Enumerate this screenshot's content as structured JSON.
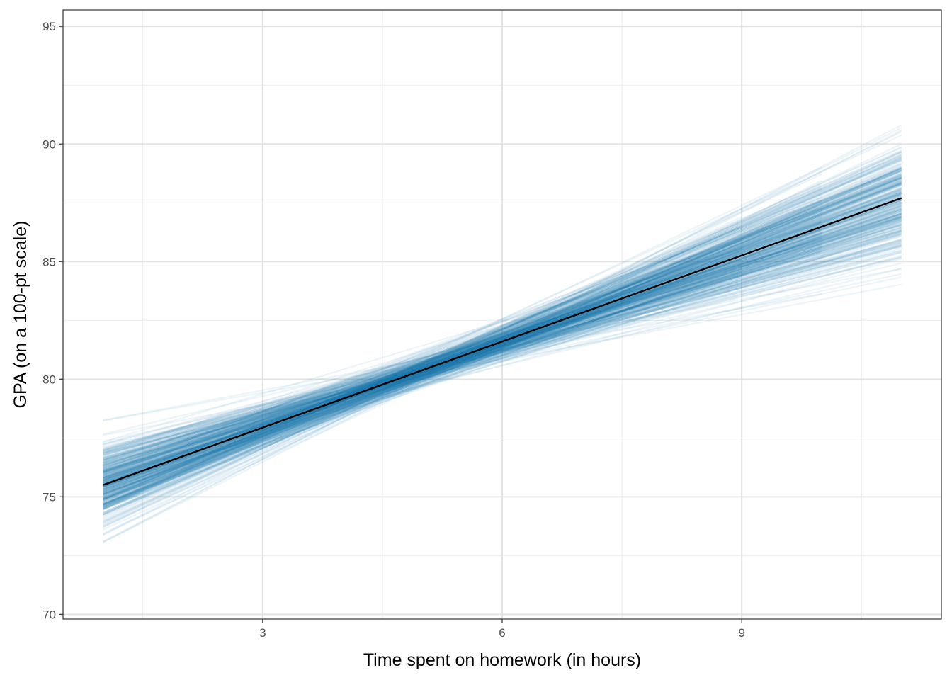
{
  "chart_data": {
    "type": "line",
    "title": "",
    "xlabel": "Time spent on homework (in hours)",
    "ylabel": "GPA (on a 100-pt scale)",
    "xlim": [
      0.5,
      11.5
    ],
    "ylim": [
      69.8,
      95.7
    ],
    "x_ticks": [
      3,
      6,
      9
    ],
    "x_tick_labels": [
      "3",
      "6",
      "9"
    ],
    "y_ticks": [
      70,
      75,
      80,
      85,
      90,
      95
    ],
    "y_tick_labels": [
      "70",
      "75",
      "80",
      "85",
      "90",
      "95"
    ],
    "x_minor_ticks": [
      1.5,
      4.5,
      7.5,
      10.5
    ],
    "y_minor_ticks": [
      72.5,
      77.5,
      82.5,
      87.5,
      92.5
    ],
    "grid": true,
    "legend": "none",
    "series": [
      {
        "role": "mean-fit",
        "color": "#000000",
        "x": [
          1,
          11
        ],
        "y": [
          75.5,
          87.7
        ]
      }
    ],
    "posterior_draws": {
      "count": 400,
      "color": "#1f78b4",
      "pivot_x": 5.0,
      "pivot_y": 80.38,
      "pivot_sd": 0.3,
      "slope_mean": 1.22,
      "slope_sd": 0.2,
      "x_start": 1,
      "x_end_options": [
        9,
        10,
        11
      ]
    }
  }
}
